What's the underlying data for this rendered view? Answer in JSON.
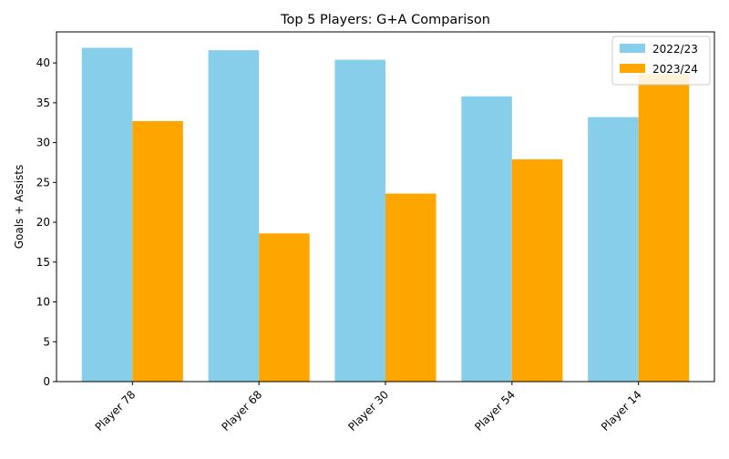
{
  "chart_data": {
    "type": "bar",
    "title": "Top 5 Players: G+A Comparison",
    "xlabel": "",
    "ylabel": "Goals + Assists",
    "categories": [
      "Player 78",
      "Player 68",
      "Player 30",
      "Player 54",
      "Player 14"
    ],
    "series": [
      {
        "name": "2022/23",
        "color": "#87ceeb",
        "values": [
          41.9,
          41.6,
          40.4,
          35.8,
          33.2
        ]
      },
      {
        "name": "2023/24",
        "color": "#ffa500",
        "values": [
          32.7,
          18.6,
          23.6,
          27.9,
          38.6
        ]
      }
    ],
    "ylim": [
      0,
      43.9
    ],
    "yticks": [
      0,
      5,
      10,
      15,
      20,
      25,
      30,
      35,
      40
    ],
    "grid": false,
    "legend_position": "top-right"
  }
}
